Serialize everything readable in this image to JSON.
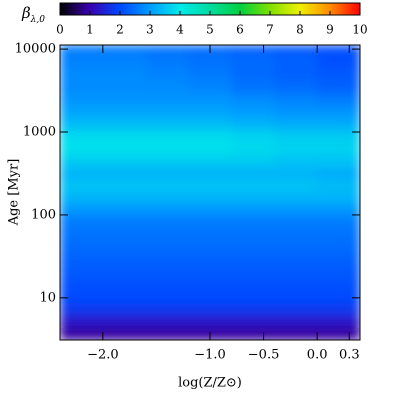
{
  "chart_data": {
    "type": "heatmap",
    "xlabel": "log(Z/Z⊙)",
    "ylabel": "Age [Myr]",
    "xbins": [
      -2.4,
      -2.0,
      -1.6,
      -1.2,
      -0.8,
      -0.4,
      0.0,
      0.4
    ],
    "ybins": [
      3.1,
      4.4,
      6.2,
      8.7,
      12,
      17,
      24,
      34,
      48,
      68,
      96,
      135,
      190,
      270,
      380,
      540,
      760,
      1070,
      1500,
      2100,
      3000,
      4300,
      6000,
      8500,
      11200
    ],
    "values": [
      [
        0.9,
        0.9,
        0.9,
        0.9,
        0.9,
        0.9,
        0.9
      ],
      [
        1.3,
        1.3,
        1.3,
        1.3,
        1.3,
        1.3,
        1.3
      ],
      [
        1.8,
        1.8,
        1.8,
        1.8,
        1.8,
        1.8,
        1.8
      ],
      [
        2.0,
        2.0,
        2.0,
        2.0,
        2.0,
        2.0,
        2.0
      ],
      [
        2.1,
        2.1,
        2.1,
        2.1,
        2.1,
        2.1,
        2.1
      ],
      [
        2.2,
        2.2,
        2.2,
        2.2,
        2.2,
        2.2,
        2.2
      ],
      [
        2.3,
        2.3,
        2.3,
        2.3,
        2.3,
        2.3,
        2.3
      ],
      [
        2.4,
        2.4,
        2.4,
        2.4,
        2.4,
        2.4,
        2.4
      ],
      [
        2.5,
        2.5,
        2.5,
        2.5,
        2.5,
        2.5,
        2.5
      ],
      [
        2.6,
        2.6,
        2.6,
        2.6,
        2.6,
        2.6,
        2.6
      ],
      [
        2.9,
        2.9,
        2.9,
        2.9,
        2.9,
        2.9,
        2.9
      ],
      [
        3.3,
        3.3,
        3.3,
        3.3,
        3.3,
        3.3,
        3.3
      ],
      [
        3.5,
        3.5,
        3.5,
        3.5,
        3.5,
        3.5,
        3.4
      ],
      [
        3.3,
        3.3,
        3.3,
        3.3,
        3.3,
        3.3,
        3.2
      ],
      [
        3.6,
        3.6,
        3.6,
        3.6,
        3.6,
        3.5,
        3.5
      ],
      [
        3.9,
        3.9,
        3.9,
        3.9,
        3.8,
        3.7,
        3.7
      ],
      [
        3.8,
        3.8,
        3.8,
        3.8,
        3.7,
        3.6,
        3.6
      ],
      [
        3.4,
        3.4,
        3.4,
        3.4,
        3.3,
        3.2,
        3.2
      ],
      [
        3.1,
        3.1,
        3.1,
        3.1,
        3.0,
        2.9,
        2.9
      ],
      [
        2.9,
        2.9,
        2.9,
        2.9,
        2.8,
        2.7,
        2.6
      ],
      [
        2.8,
        2.8,
        2.8,
        2.7,
        2.5,
        2.4,
        2.3
      ],
      [
        2.8,
        2.8,
        2.7,
        2.6,
        2.4,
        2.3,
        2.2
      ],
      [
        2.7,
        2.7,
        2.6,
        2.5,
        2.4,
        2.3,
        2.1
      ],
      [
        2.6,
        2.6,
        2.5,
        2.4,
        2.3,
        2.2,
        2.1
      ]
    ],
    "xlim": [
      -2.4,
      0.4
    ],
    "xticks": [
      {
        "value": -2.0,
        "label": "−2.0"
      },
      {
        "value": -1.0,
        "label": "−1.0"
      },
      {
        "value": -0.5,
        "label": "−0.5"
      },
      {
        "value": 0.0,
        "label": "0.0"
      },
      {
        "value": 0.3,
        "label": "0.3"
      }
    ],
    "ylim": [
      3.1,
      11200
    ],
    "yticks": [
      10,
      100,
      1000,
      10000
    ],
    "ylog": true,
    "colorbar": {
      "label": "β",
      "label_sub": "λ,0",
      "lim": [
        0,
        10
      ],
      "ticks": [
        0,
        1,
        2,
        3,
        4,
        5,
        6,
        7,
        8,
        9,
        10
      ],
      "colors": [
        "#000000",
        "#3a00b0",
        "#0048ff",
        "#009cff",
        "#00eaea",
        "#00dca0",
        "#00d040",
        "#80e000",
        "#f0f000",
        "#ff8c00",
        "#ff0000"
      ]
    }
  }
}
